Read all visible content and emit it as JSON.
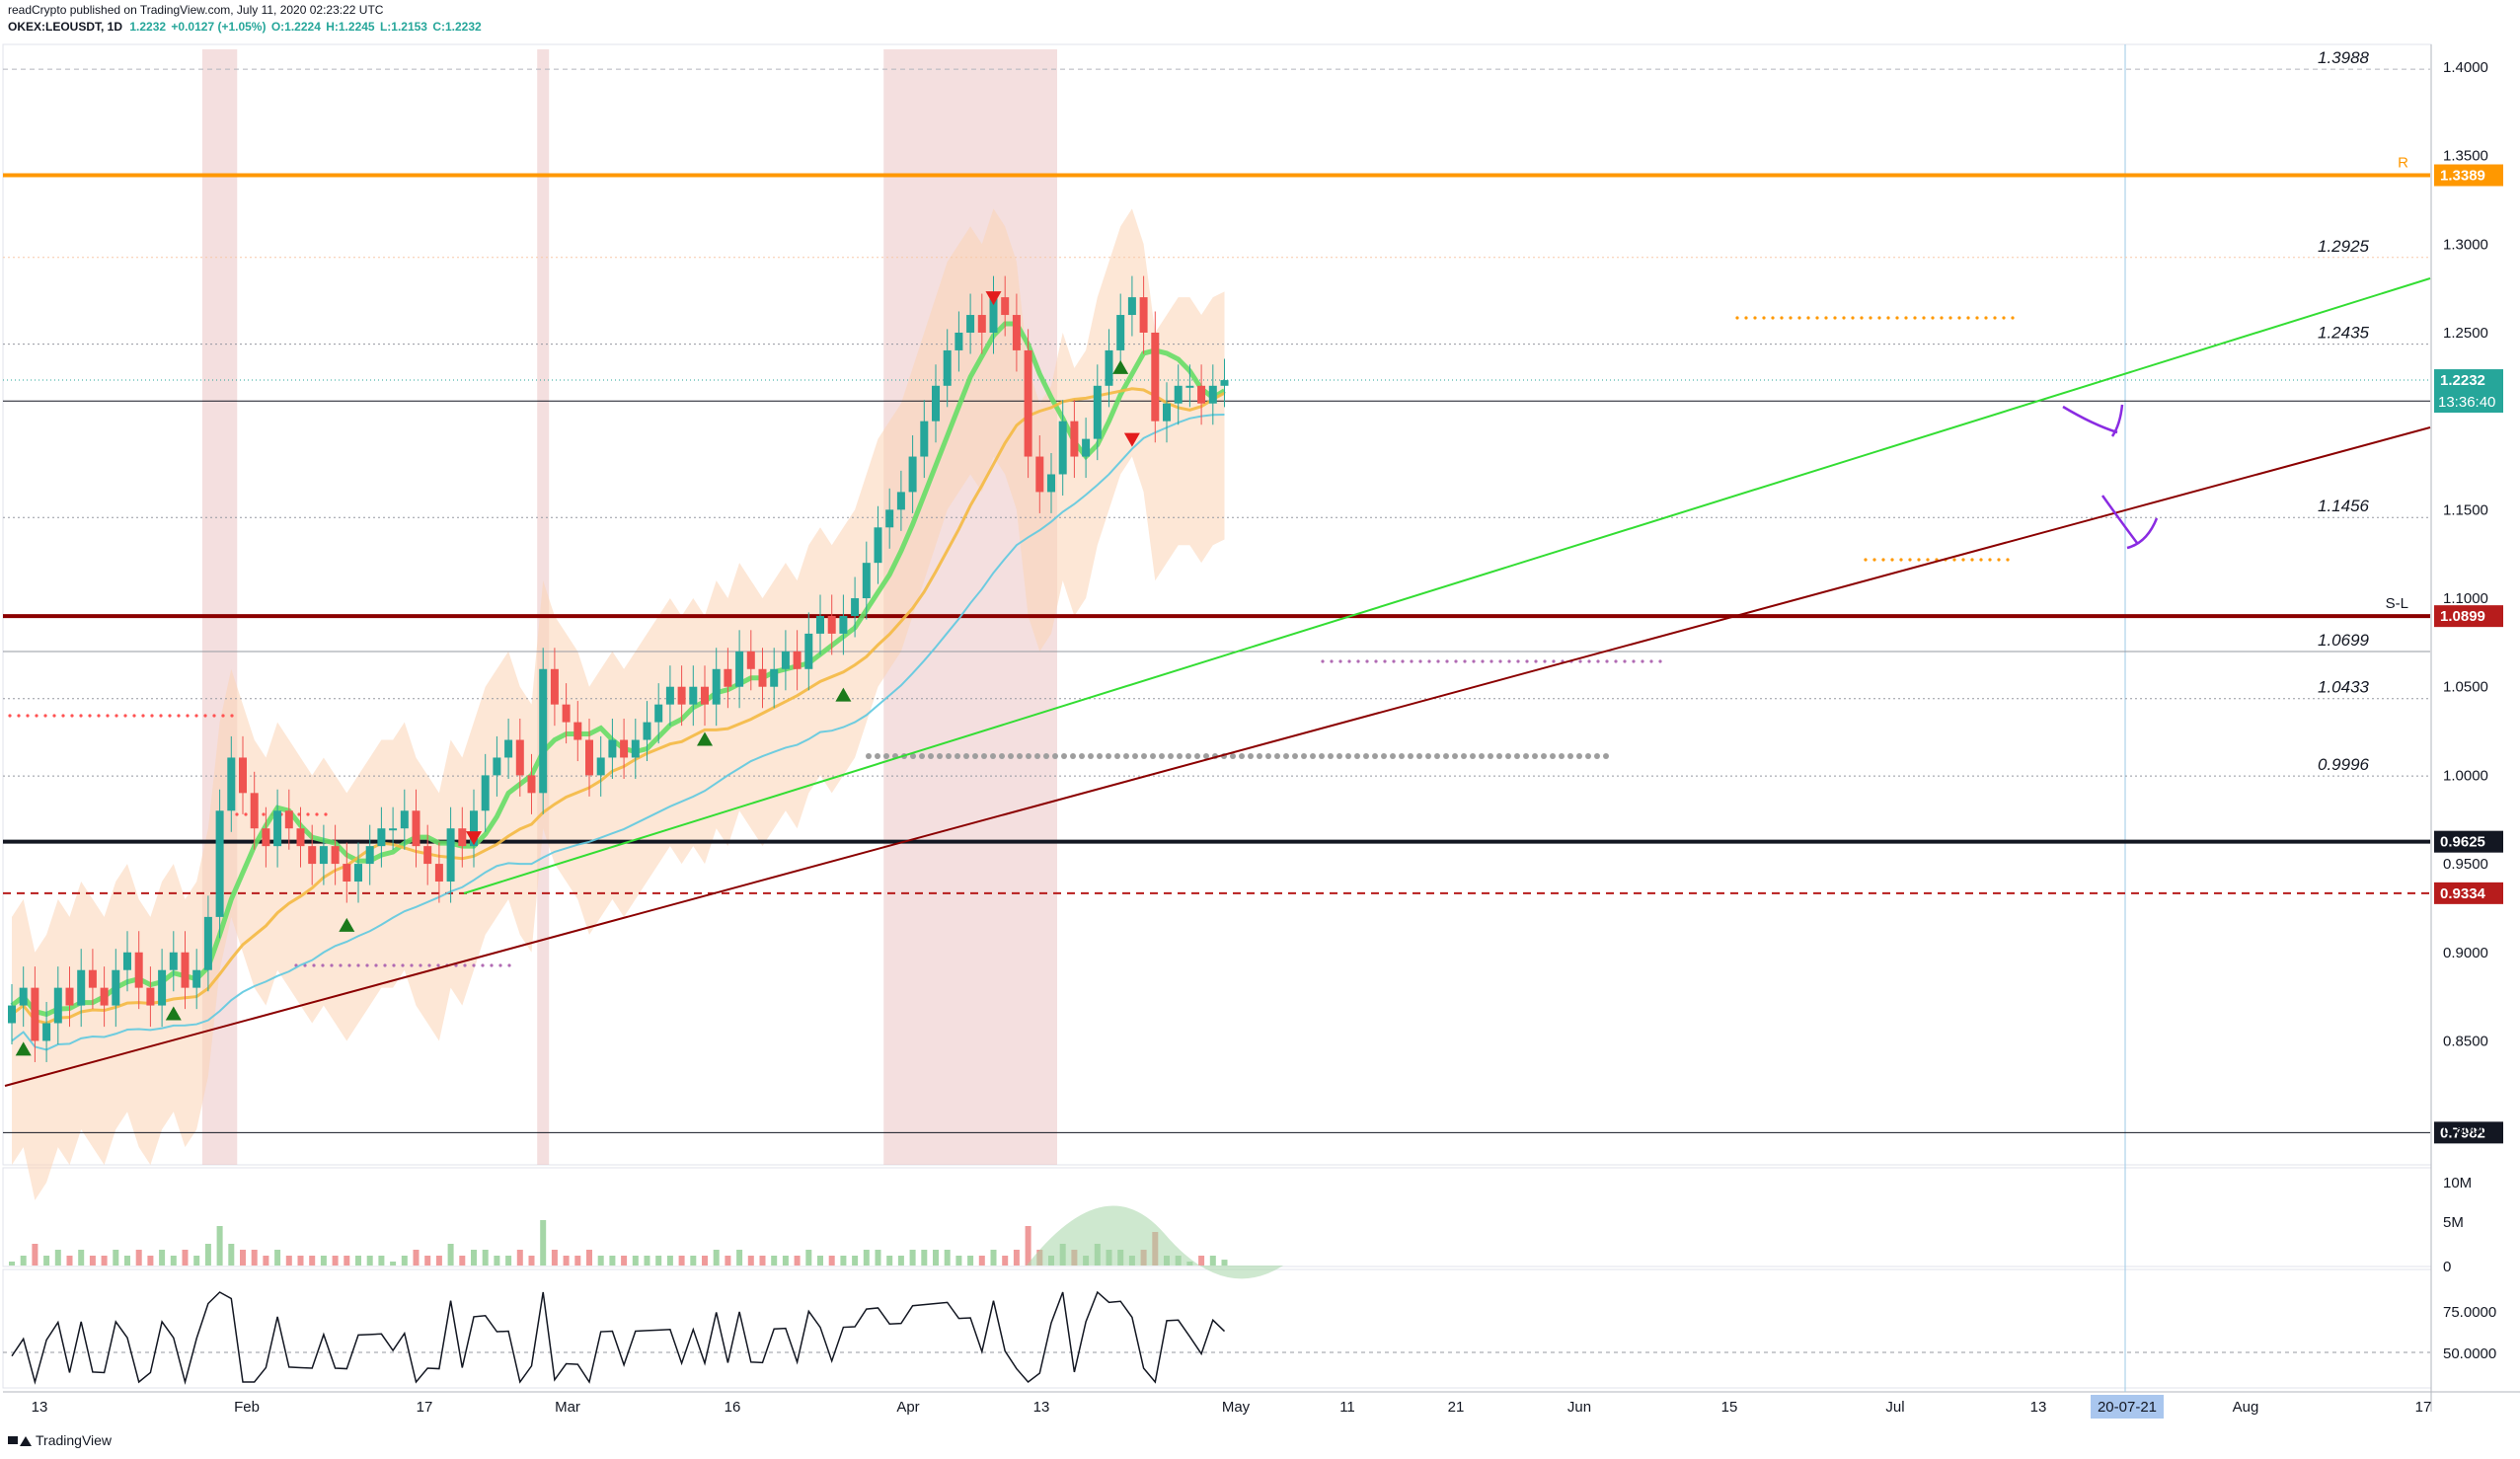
{
  "header": {
    "published": "readCrypto published on TradingView.com, July 11, 2020 02:23:22 UTC",
    "symbol": "OKEX:LEOUSDT, 1D",
    "last": "1.2232",
    "change": "+0.0127 (+1.05%)",
    "open": "O:1.2224",
    "high": "H:1.2245",
    "low": "L:1.2153",
    "close": "C:1.2232"
  },
  "footer": {
    "brand": "TradingView"
  },
  "colors": {
    "up": "#26a69a",
    "down": "#ef5350",
    "orange": "#ff9800",
    "darkred": "#8b0000",
    "green_line": "#33dd33",
    "purple": "#8a2be2",
    "band": "#fbd3b4",
    "highlight": "#e6b8b8"
  },
  "chart_data": {
    "type": "candlestick",
    "price_axis": {
      "ticks": [
        "1.4000",
        "1.3500",
        "1.3000",
        "1.2500",
        "1.1500",
        "1.1000",
        "1.0500",
        "1.0000",
        "0.9500",
        "0.9000",
        "0.8500",
        "0.8000"
      ],
      "ylim": [
        0.78,
        1.41
      ]
    },
    "time_axis": {
      "ticks": [
        "13",
        "Feb",
        "17",
        "Mar",
        "16",
        "Apr",
        "13",
        "May",
        "11",
        "21",
        "Jun",
        "15",
        "Jul",
        "13",
        "Aug",
        "17"
      ],
      "cursor_label": "20-07-21"
    },
    "volume_axis": {
      "ticks": [
        "10M",
        "5M",
        "0"
      ]
    },
    "oscillator_axis": {
      "ticks": [
        "75.0000",
        "50.0000"
      ]
    },
    "levels": [
      {
        "value": 1.3988,
        "label": "1.3988",
        "style": "dashed-gray"
      },
      {
        "value": 1.3389,
        "label": "1.3389",
        "style": "orange",
        "tag": "R"
      },
      {
        "value": 1.2925,
        "label": "1.2925",
        "style": "dotted-peach"
      },
      {
        "value": 1.2435,
        "label": "1.2435",
        "style": "dotted-gray"
      },
      {
        "value": 1.2114,
        "label": "1.2114",
        "style": "black-thin"
      },
      {
        "value": 1.1456,
        "label": "1.1456",
        "style": "dotted-gray"
      },
      {
        "value": 1.0899,
        "label": "1.0899",
        "style": "darkred",
        "tag": "S-L"
      },
      {
        "value": 1.0699,
        "label": "1.0699",
        "style": "gray-thin"
      },
      {
        "value": 1.0433,
        "label": "1.0433",
        "style": "dotted-gray"
      },
      {
        "value": 0.9996,
        "label": "0.9996",
        "style": "dotted-gray"
      },
      {
        "value": 0.9625,
        "label": "0.9625",
        "style": "black-thick"
      },
      {
        "value": 0.9334,
        "label": "0.9334",
        "style": "darkred-dashed"
      },
      {
        "value": 0.7982,
        "label": "0.7982",
        "style": "black-thin"
      }
    ],
    "price_tags": [
      {
        "value": 1.2232,
        "label": "1.2232",
        "sub": "13:36:40",
        "color": "#26a69a"
      }
    ]
  }
}
